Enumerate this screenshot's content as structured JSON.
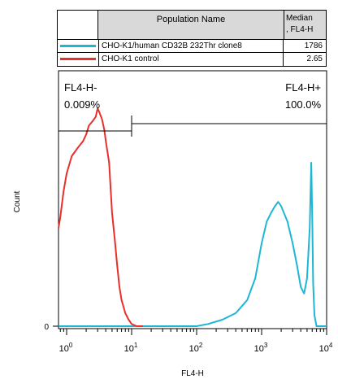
{
  "legend": {
    "header_name": "Population Name",
    "header_median": "Median\n, FL4-H",
    "rows": [
      {
        "name": "CHO-K1/human CD32B 232Thr clone8",
        "median": "1786",
        "color": "#1fb6d6"
      },
      {
        "name": "CHO-K1 control",
        "median": "2.65",
        "color": "#e8302a"
      }
    ]
  },
  "chart_data": {
    "type": "line",
    "title": "",
    "xlabel": "FL4-H",
    "ylabel": "Count",
    "x_scale": "log",
    "xlim": [
      0.75,
      10000
    ],
    "ylim": [
      0,
      100
    ],
    "x_ticks": [
      "10^0",
      "10^1",
      "10^2",
      "10^3",
      "10^4"
    ],
    "x_tick_values": [
      1,
      10,
      100,
      1000,
      10000
    ],
    "y_ticks": [
      "0"
    ],
    "gates": [
      {
        "label": "FL4-H-",
        "percent": "0.009%",
        "range": [
          0.75,
          10
        ]
      },
      {
        "label": "FL4-H+",
        "percent": "100.0%",
        "range": [
          10,
          10000
        ]
      }
    ],
    "series": [
      {
        "name": "CHO-K1/human CD32B 232Thr clone8",
        "color": "#1fb6d6",
        "points": [
          [
            0.75,
            0
          ],
          [
            10,
            0
          ],
          [
            100,
            0
          ],
          [
            150,
            1
          ],
          [
            250,
            3
          ],
          [
            400,
            6
          ],
          [
            600,
            12
          ],
          [
            800,
            22
          ],
          [
            1000,
            38
          ],
          [
            1200,
            48
          ],
          [
            1400,
            52
          ],
          [
            1600,
            55
          ],
          [
            1800,
            57
          ],
          [
            2000,
            55
          ],
          [
            2500,
            48
          ],
          [
            3000,
            38
          ],
          [
            3500,
            28
          ],
          [
            4000,
            18
          ],
          [
            4500,
            15
          ],
          [
            5000,
            22
          ],
          [
            5500,
            45
          ],
          [
            5800,
            75
          ],
          [
            6000,
            50
          ],
          [
            6200,
            20
          ],
          [
            6500,
            5
          ],
          [
            7000,
            0
          ],
          [
            10000,
            0
          ]
        ]
      },
      {
        "name": "CHO-K1 control",
        "color": "#e8302a",
        "points": [
          [
            0.75,
            45
          ],
          [
            0.8,
            50
          ],
          [
            0.9,
            62
          ],
          [
            1.0,
            70
          ],
          [
            1.2,
            78
          ],
          [
            1.5,
            82
          ],
          [
            1.8,
            85
          ],
          [
            2.0,
            88
          ],
          [
            2.2,
            92
          ],
          [
            2.5,
            94
          ],
          [
            2.8,
            96
          ],
          [
            3.0,
            100
          ],
          [
            3.2,
            98
          ],
          [
            3.5,
            95
          ],
          [
            3.8,
            90
          ],
          [
            4.0,
            85
          ],
          [
            4.5,
            75
          ],
          [
            5.0,
            52
          ],
          [
            5.5,
            40
          ],
          [
            6.0,
            28
          ],
          [
            6.5,
            18
          ],
          [
            7.0,
            12
          ],
          [
            8.0,
            6
          ],
          [
            9.0,
            3
          ],
          [
            10.0,
            1
          ],
          [
            12,
            0
          ],
          [
            15,
            0
          ]
        ]
      }
    ]
  }
}
